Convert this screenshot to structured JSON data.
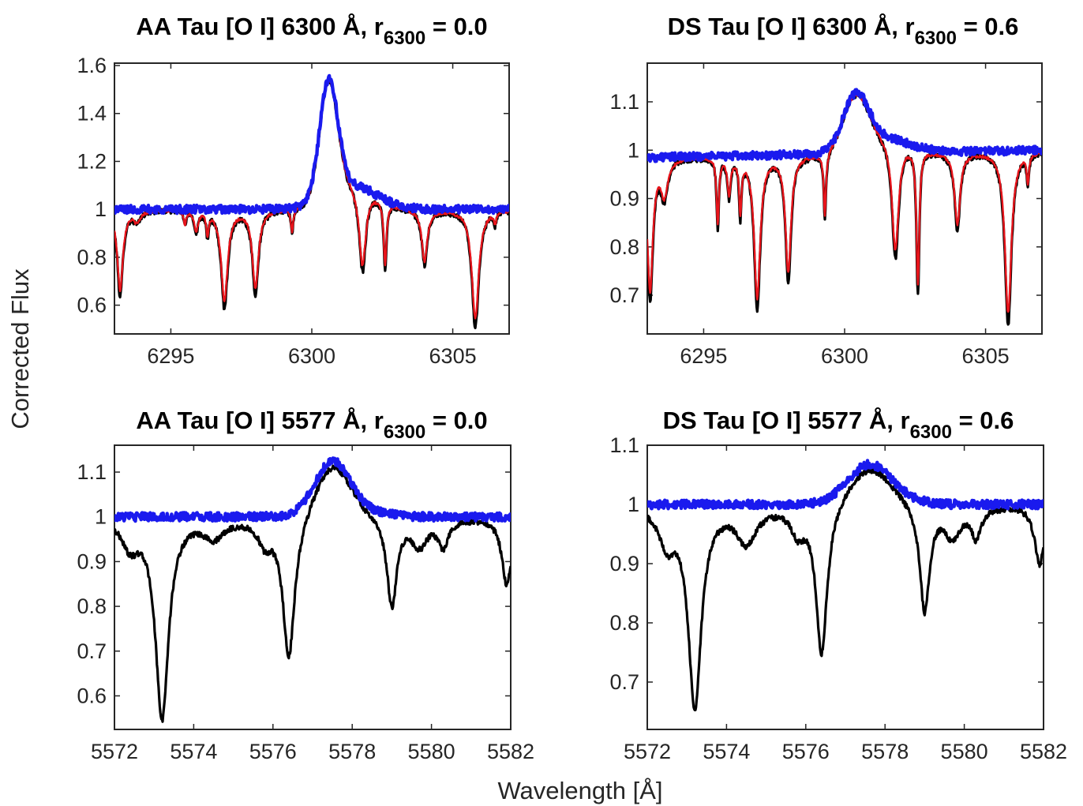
{
  "figure": {
    "ylabel": "Corrected Flux",
    "xlabel": "Wavelength [Å]",
    "colors": {
      "black": "#000000",
      "red": "#e8141b",
      "blue": "#1a1aee"
    }
  },
  "chart_data": [
    {
      "type": "line",
      "title": "AA Tau [O I] 6300 Å, r6300 = 0.0",
      "title_main": "AA Tau [O I] 6300 Å, r",
      "title_sub": "6300",
      "title_end": " = 0.0",
      "xlim": [
        6293,
        6307
      ],
      "ylim": [
        0.48,
        1.61
      ],
      "xticks": [
        6295,
        6300,
        6305
      ],
      "yticks": [
        0.6,
        0.8,
        1,
        1.2,
        1.4,
        1.6
      ],
      "ytick_labels": [
        "0.6",
        "0.8",
        "1",
        "1.2",
        "1.4",
        "1.6"
      ],
      "base": [
        1.0,
        1.0
      ],
      "emission": {
        "center": 6300.6,
        "sigma": 0.32,
        "amp": 0.48
      },
      "blue_wing": {
        "center": 6301.4,
        "sigma": 0.9,
        "amp": 0.1
      },
      "absorption": [
        {
          "center": 6293.2,
          "depth": 0.36,
          "width": 0.12
        },
        {
          "center": 6293.8,
          "depth": 0.05,
          "width": 0.15
        },
        {
          "center": 6295.5,
          "depth": 0.06,
          "width": 0.05
        },
        {
          "center": 6295.9,
          "depth": 0.09,
          "width": 0.08
        },
        {
          "center": 6296.3,
          "depth": 0.1,
          "width": 0.05
        },
        {
          "center": 6296.9,
          "depth": 0.41,
          "width": 0.14
        },
        {
          "center": 6298.0,
          "depth": 0.35,
          "width": 0.13
        },
        {
          "center": 6299.3,
          "depth": 0.1,
          "width": 0.05
        },
        {
          "center": 6301.8,
          "depth": 0.32,
          "width": 0.14
        },
        {
          "center": 6302.6,
          "depth": 0.27,
          "width": 0.06
        },
        {
          "center": 6304.0,
          "depth": 0.23,
          "width": 0.12
        },
        {
          "center": 6305.8,
          "depth": 0.49,
          "width": 0.15
        },
        {
          "center": 6306.5,
          "depth": 0.05,
          "width": 0.05
        }
      ],
      "series": [
        {
          "color": "black",
          "kind": "observed"
        },
        {
          "color": "red",
          "kind": "model"
        },
        {
          "color": "blue",
          "kind": "corrected"
        }
      ]
    },
    {
      "type": "line",
      "title": "DS Tau [O I] 6300 Å, r6300 = 0.6",
      "title_main": "DS Tau [O I] 6300 Å, r",
      "title_sub": "6300",
      "title_end": " = 0.6",
      "xlim": [
        6293,
        6307
      ],
      "ylim": [
        0.62,
        1.18
      ],
      "xticks": [
        6295,
        6300,
        6305
      ],
      "yticks": [
        0.7,
        0.8,
        0.9,
        1,
        1.1
      ],
      "ytick_labels": [
        "0.7",
        "0.8",
        "0.9",
        "1",
        "1.1"
      ],
      "base": [
        0.985,
        1.0
      ],
      "emission": {
        "center": 6300.4,
        "sigma": 0.45,
        "amp": 0.11
      },
      "blue_wing": {
        "center": 6301.4,
        "sigma": 0.9,
        "amp": 0.03
      },
      "absorption": [
        {
          "center": 6293.1,
          "depth": 0.3,
          "width": 0.12
        },
        {
          "center": 6293.6,
          "depth": 0.08,
          "width": 0.15
        },
        {
          "center": 6295.5,
          "depth": 0.15,
          "width": 0.05
        },
        {
          "center": 6295.9,
          "depth": 0.08,
          "width": 0.07
        },
        {
          "center": 6296.3,
          "depth": 0.12,
          "width": 0.05
        },
        {
          "center": 6296.9,
          "depth": 0.32,
          "width": 0.13
        },
        {
          "center": 6298.0,
          "depth": 0.26,
          "width": 0.12
        },
        {
          "center": 6299.3,
          "depth": 0.14,
          "width": 0.05
        },
        {
          "center": 6301.8,
          "depth": 0.24,
          "width": 0.14
        },
        {
          "center": 6302.6,
          "depth": 0.3,
          "width": 0.06
        },
        {
          "center": 6304.0,
          "depth": 0.16,
          "width": 0.12
        },
        {
          "center": 6305.8,
          "depth": 0.36,
          "width": 0.14
        },
        {
          "center": 6306.5,
          "depth": 0.06,
          "width": 0.05
        }
      ],
      "series": [
        {
          "color": "black",
          "kind": "observed"
        },
        {
          "color": "red",
          "kind": "model"
        },
        {
          "color": "blue",
          "kind": "corrected"
        }
      ]
    },
    {
      "type": "line",
      "title": "AA Tau [O I] 5577 Å, r6300 = 0.0",
      "title_main": "AA Tau [O I] 5577 Å, r",
      "title_sub": "6300",
      "title_end": " = 0.0",
      "xlim": [
        5572,
        5582
      ],
      "ylim": [
        0.525,
        1.16
      ],
      "xticks": [
        5572,
        5574,
        5576,
        5578,
        5580,
        5582
      ],
      "yticks": [
        0.6,
        0.7,
        0.8,
        0.9,
        1,
        1.1
      ],
      "ytick_labels": [
        "0.6",
        "0.7",
        "0.8",
        "0.9",
        "1",
        "1.1"
      ],
      "base": [
        1.0,
        1.0
      ],
      "emission": {
        "center": 5577.5,
        "sigma": 0.45,
        "amp": 0.12
      },
      "blue_wing": {
        "center": 5578.3,
        "sigma": 0.6,
        "amp": 0.01
      },
      "absorption": [
        {
          "center": 5572.4,
          "depth": 0.06,
          "width": 0.25
        },
        {
          "center": 5573.2,
          "depth": 0.45,
          "width": 0.2
        },
        {
          "center": 5574.5,
          "depth": 0.04,
          "width": 0.3
        },
        {
          "center": 5575.8,
          "depth": 0.05,
          "width": 0.2
        },
        {
          "center": 5576.4,
          "depth": 0.31,
          "width": 0.18
        },
        {
          "center": 5579.0,
          "depth": 0.2,
          "width": 0.15
        },
        {
          "center": 5579.7,
          "depth": 0.06,
          "width": 0.25
        },
        {
          "center": 5580.3,
          "depth": 0.06,
          "width": 0.15
        },
        {
          "center": 5581.9,
          "depth": 0.15,
          "width": 0.15
        }
      ],
      "series": [
        {
          "color": "black",
          "kind": "observed"
        },
        {
          "color": "blue",
          "kind": "corrected"
        }
      ]
    },
    {
      "type": "line",
      "title": "DS Tau [O I] 5577 Å, r6300 = 0.6",
      "title_main": "DS Tau [O I] 5577 Å, r",
      "title_sub": "6300",
      "title_end": " = 0.6",
      "xlim": [
        5572,
        5582
      ],
      "ylim": [
        0.62,
        1.1
      ],
      "xticks": [
        5572,
        5574,
        5576,
        5578,
        5580,
        5582
      ],
      "yticks": [
        0.7,
        0.8,
        0.9,
        1,
        1.1
      ],
      "ytick_labels": [
        "0.7",
        "0.8",
        "0.9",
        "1",
        "1.1"
      ],
      "base": [
        1.0,
        1.0
      ],
      "emission": {
        "center": 5577.6,
        "sigma": 0.55,
        "amp": 0.065
      },
      "blue_wing": {
        "center": 5578.3,
        "sigma": 0.6,
        "amp": 0.005
      },
      "absorption": [
        {
          "center": 5572.5,
          "depth": 0.06,
          "width": 0.25
        },
        {
          "center": 5573.2,
          "depth": 0.34,
          "width": 0.2
        },
        {
          "center": 5574.5,
          "depth": 0.06,
          "width": 0.3
        },
        {
          "center": 5575.8,
          "depth": 0.04,
          "width": 0.2
        },
        {
          "center": 5576.4,
          "depth": 0.25,
          "width": 0.17
        },
        {
          "center": 5579.0,
          "depth": 0.18,
          "width": 0.15
        },
        {
          "center": 5579.7,
          "depth": 0.05,
          "width": 0.25
        },
        {
          "center": 5580.3,
          "depth": 0.05,
          "width": 0.15
        },
        {
          "center": 5581.9,
          "depth": 0.1,
          "width": 0.15
        }
      ],
      "series": [
        {
          "color": "black",
          "kind": "observed"
        },
        {
          "color": "blue",
          "kind": "corrected"
        }
      ]
    }
  ]
}
